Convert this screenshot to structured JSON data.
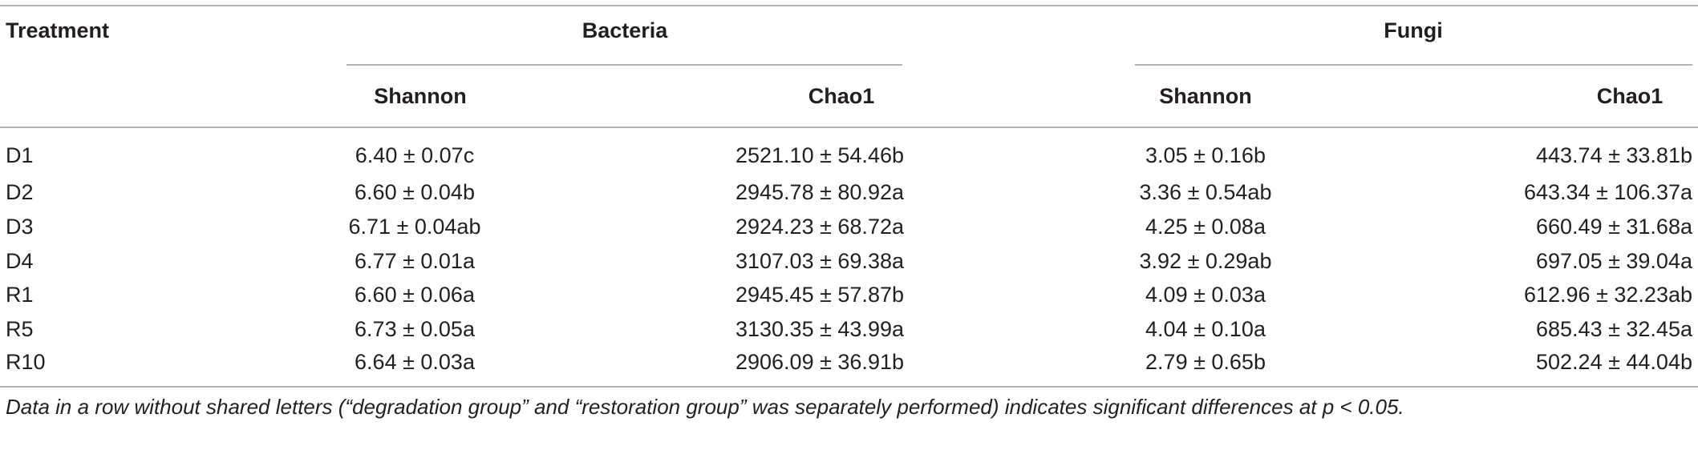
{
  "table": {
    "header": {
      "treatment": "Treatment",
      "groups": [
        "Bacteria",
        "Fungi"
      ],
      "metrics": [
        "Shannon",
        "Chao1",
        "Shannon",
        "Chao1"
      ]
    },
    "rows": [
      [
        "D1",
        "6.40 ± 0.07c",
        "2521.10 ± 54.46b",
        "3.05 ± 0.16b",
        "443.74 ± 33.81b"
      ],
      [
        "D2",
        "6.60 ± 0.04b",
        "2945.78 ± 80.92a",
        "3.36 ± 0.54ab",
        "643.34 ± 106.37a"
      ],
      [
        "D3",
        "6.71 ± 0.04ab",
        "2924.23 ± 68.72a",
        "4.25 ± 0.08a",
        "660.49 ± 31.68a"
      ],
      [
        "D4",
        "6.77 ± 0.01a",
        "3107.03 ± 69.38a",
        "3.92 ± 0.29ab",
        "697.05 ± 39.04a"
      ],
      [
        "R1",
        "6.60 ± 0.06a",
        "2945.45 ± 57.87b",
        "4.09 ± 0.03a",
        "612.96 ± 32.23ab"
      ],
      [
        "R5",
        "6.73 ± 0.05a",
        "3130.35 ± 43.99a",
        "4.04 ± 0.10a",
        "685.43 ± 32.45a"
      ],
      [
        "R10",
        "6.64 ± 0.03a",
        "2906.09 ± 36.91b",
        "2.79 ± 0.65b",
        "502.24 ± 44.04b"
      ]
    ],
    "footnote": "Data in a row without shared letters (“degradation group” and “restoration group” was separately performed) indicates significant differences at p < 0.05."
  }
}
